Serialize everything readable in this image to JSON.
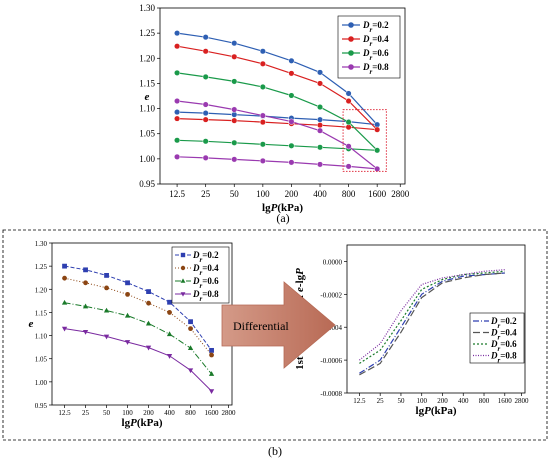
{
  "panel_a_caption": "(a)",
  "panel_b_caption": "(b)",
  "arrow_label": "Differential",
  "chart_data": [
    {
      "type": "line",
      "id": "a",
      "x": [
        12.5,
        25,
        50,
        100,
        200,
        400,
        800,
        1600
      ],
      "xticks": [
        "12.5",
        "25",
        "50",
        "100",
        "200",
        "400",
        "800",
        "1600",
        "2800"
      ],
      "xlabel_prefix": "lg",
      "xlabel_var": "P",
      "xlabel_suffix": "(kPa)",
      "ylabel": "e",
      "ylim": [
        0.95,
        1.3
      ],
      "yticks": [
        "0.95",
        "1.00",
        "1.05",
        "1.10",
        "1.15",
        "1.20",
        "1.25",
        "1.30"
      ],
      "legend_placement": "top-right",
      "series": [
        {
          "name": "0.2",
          "color": "#2e5fb3",
          "loading": [
            1.25,
            1.242,
            1.23,
            1.214,
            1.195,
            1.172,
            1.13,
            1.068
          ],
          "unloading": [
            1.093,
            1.091,
            1.088,
            1.085,
            1.081,
            1.078,
            1.074,
            1.068
          ]
        },
        {
          "name": "0.4",
          "color": "#d92020",
          "loading": [
            1.224,
            1.214,
            1.203,
            1.189,
            1.17,
            1.15,
            1.115,
            1.058
          ],
          "unloading": [
            1.08,
            1.078,
            1.076,
            1.073,
            1.07,
            1.067,
            1.063,
            1.058
          ]
        },
        {
          "name": "0.6",
          "color": "#1a9a4a",
          "loading": [
            1.171,
            1.163,
            1.154,
            1.143,
            1.126,
            1.103,
            1.073,
            1.017
          ],
          "unloading": [
            1.037,
            1.035,
            1.032,
            1.029,
            1.026,
            1.023,
            1.02,
            1.017
          ]
        },
        {
          "name": "0.8",
          "color": "#9a3ab0",
          "loading": [
            1.115,
            1.108,
            1.098,
            1.086,
            1.074,
            1.056,
            1.025,
            0.98
          ],
          "unloading": [
            1.004,
            1.002,
            0.999,
            0.996,
            0.993,
            0.989,
            0.985,
            0.98
          ]
        }
      ]
    },
    {
      "type": "line",
      "id": "b-left",
      "x": [
        12.5,
        25,
        50,
        100,
        200,
        400,
        800,
        1600
      ],
      "xticks": [
        "12.5",
        "25",
        "50",
        "100",
        "200",
        "400",
        "800",
        "1600",
        "2800"
      ],
      "xlabel_prefix": "lg",
      "xlabel_var": "P",
      "xlabel_suffix": "(kPa)",
      "ylabel": "e",
      "ylim": [
        0.95,
        1.3
      ],
      "yticks": [
        "0.95",
        "1.00",
        "1.05",
        "1.10",
        "1.15",
        "1.20",
        "1.25",
        "1.30"
      ],
      "legend_placement": "top-right",
      "series": [
        {
          "name": "0.2",
          "color": "#2e3fb0",
          "marker": "square",
          "dash": "4,2",
          "values": [
            1.25,
            1.242,
            1.23,
            1.214,
            1.195,
            1.172,
            1.13,
            1.068
          ]
        },
        {
          "name": "0.4",
          "color": "#8b4513",
          "marker": "circle",
          "dash": "1,2",
          "values": [
            1.224,
            1.214,
            1.203,
            1.189,
            1.17,
            1.15,
            1.115,
            1.058
          ]
        },
        {
          "name": "0.6",
          "color": "#1a7a2a",
          "marker": "triangle",
          "dash": "6,2,1,2",
          "values": [
            1.171,
            1.163,
            1.154,
            1.143,
            1.126,
            1.103,
            1.073,
            1.017
          ]
        },
        {
          "name": "0.8",
          "color": "#7a2aa0",
          "marker": "tri-down",
          "dash": "",
          "values": [
            1.115,
            1.108,
            1.098,
            1.086,
            1.074,
            1.056,
            1.025,
            0.98
          ]
        }
      ]
    },
    {
      "type": "line",
      "id": "b-right",
      "x": [
        12.5,
        25,
        50,
        100,
        200,
        400,
        800,
        1600
      ],
      "xticks": [
        "12.5",
        "25",
        "50",
        "100",
        "200",
        "400",
        "800",
        "1600",
        "2800"
      ],
      "xlabel_prefix": "lg",
      "xlabel_var": "P",
      "xlabel_suffix": "(kPa)",
      "ylabel_prefix": "1st derivative of ",
      "ylabel_var": "e",
      "ylabel_mid": "-lg",
      "ylabel_var2": "P",
      "ylim": [
        -0.0008,
        0.0001
      ],
      "yticks": [
        "-0.0008",
        "-0.0006",
        "-0.0004",
        "-0.0002",
        "0.0000"
      ],
      "legend_placement": "right",
      "series": [
        {
          "name": "0.2",
          "color": "#2e3fb0",
          "dash": "6,2,1,2",
          "values": [
            -0.00068,
            -0.0006,
            -0.0004,
            -0.0002,
            -0.00012,
            -9e-05,
            -8e-05,
            -7e-05
          ]
        },
        {
          "name": "0.4",
          "color": "#555555",
          "dash": "7,3",
          "values": [
            -0.00069,
            -0.00062,
            -0.00043,
            -0.00022,
            -0.00013,
            -0.0001,
            -8e-05,
            -7e-05
          ]
        },
        {
          "name": "0.6",
          "color": "#1a7a2a",
          "dash": "2,2",
          "values": [
            -0.00062,
            -0.00054,
            -0.00036,
            -0.00017,
            -0.00011,
            -8e-05,
            -7e-05,
            -6e-05
          ]
        },
        {
          "name": "0.8",
          "color": "#7a2aa0",
          "dash": "1,1.5",
          "values": [
            -0.0006,
            -0.0005,
            -0.0003,
            -0.00014,
            -0.0001,
            -8e-05,
            -6e-05,
            -5e-05
          ]
        }
      ]
    }
  ]
}
